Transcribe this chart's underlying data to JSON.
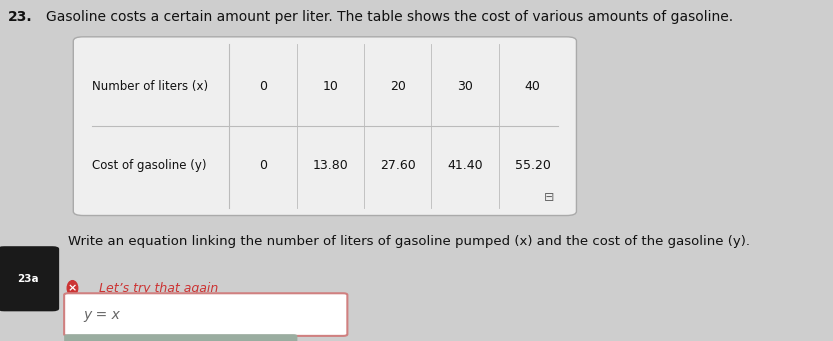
{
  "problem_number": "23.",
  "problem_text": "Gasoline costs a certain amount per liter. The table shows the cost of various amounts of gasoline.",
  "table": {
    "row1_label": "Number of liters (x)",
    "row2_label": "Cost of gasoline (y)",
    "x_values": [
      "0",
      "10",
      "20",
      "30",
      "40"
    ],
    "y_values": [
      "0",
      "13.80",
      "27.60",
      "41.40",
      "55.20"
    ]
  },
  "part_label": "23a",
  "part_text": "Write an equation linking the number of liters of gasoline pumped (x) and the cost of the gasoline (y).",
  "feedback_text": "Let’s try that again",
  "answer_text": "y = x",
  "bg_color": "#cecece",
  "table_bg": "#efefef",
  "answer_box_border": "#d08080",
  "answer_box_bg": "#ffffff",
  "toolbar_bg": "#9aada0",
  "part_badge_bg": "#1a1a1a",
  "part_badge_text": "#ffffff",
  "feedback_color": "#cc3333",
  "main_text_color": "#111111",
  "answer_text_color": "#666666",
  "part_text_color": "#111111",
  "line_color": "#bbbbbb"
}
